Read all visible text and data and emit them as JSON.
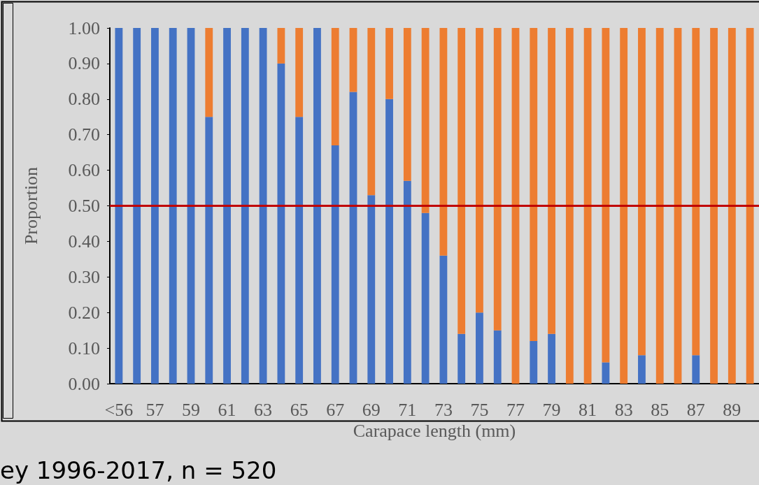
{
  "chart_data": {
    "type": "bar",
    "stacked": true,
    "xlabel": "Carapace length (mm)",
    "ylabel": "Proportion",
    "categories": [
      "<56",
      null,
      "57",
      null,
      "59",
      null,
      "61",
      null,
      "63",
      null,
      "65",
      null,
      "67",
      null,
      "69",
      null,
      "71",
      null,
      "73",
      null,
      "75",
      null,
      "77",
      null,
      "79",
      null,
      "81",
      null,
      "83",
      null,
      "85",
      null,
      "87",
      null,
      "89",
      null
    ],
    "series": [
      {
        "color": "#4472c4",
        "values": [
          1,
          1,
          1,
          1,
          1,
          0.75,
          1,
          1,
          1,
          0.9,
          0.75,
          1,
          0.67,
          0.82,
          0.53,
          0.8,
          0.57,
          0.48,
          0.36,
          0.14,
          0.2,
          0.15,
          0,
          0.12,
          0.14,
          0,
          0,
          0.06,
          0,
          0.08,
          0,
          0,
          0.08,
          0,
          0,
          0
        ]
      },
      {
        "color": "#ed7d31",
        "values": [
          0,
          0,
          0,
          0,
          0,
          0.25,
          0,
          0,
          0,
          0.1,
          0.25,
          0,
          0.33,
          0.18,
          0.47,
          0.2,
          0.43,
          0.52,
          0.64,
          0.86,
          0.8,
          0.85,
          1,
          0.88,
          0.86,
          1,
          1,
          0.94,
          1,
          0.92,
          1,
          1,
          0.92,
          1,
          1,
          1
        ]
      }
    ],
    "ylim": [
      0,
      1
    ],
    "yticks": [
      {
        "value": 0,
        "label": "0.00"
      },
      {
        "value": 0.1,
        "label": "0.10"
      },
      {
        "value": 0.2,
        "label": "0.20"
      },
      {
        "value": 0.3,
        "label": "0.30"
      },
      {
        "value": 0.4,
        "label": "0.40"
      },
      {
        "value": 0.5,
        "label": "0.50"
      },
      {
        "value": 0.6,
        "label": "0.60"
      },
      {
        "value": 0.7,
        "label": "0.70"
      },
      {
        "value": 0.8,
        "label": "0.80"
      },
      {
        "value": 0.9,
        "label": "0.90"
      },
      {
        "value": 1,
        "label": "1.00"
      }
    ],
    "ref_lines": [
      {
        "axis": "y",
        "value": 0.5,
        "color": "#c00000"
      }
    ],
    "annotations": [
      "ey 1996-2017, n = 520"
    ]
  }
}
